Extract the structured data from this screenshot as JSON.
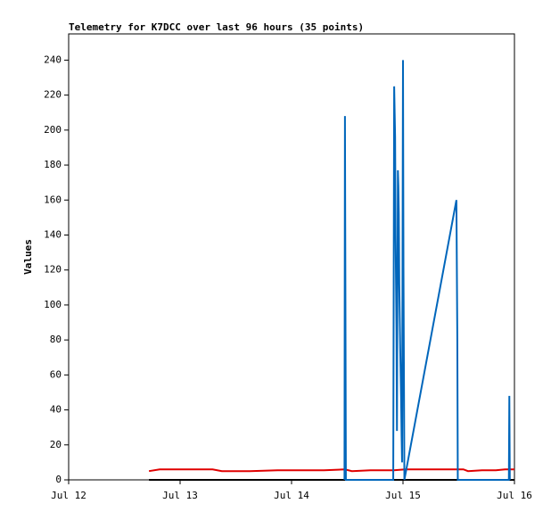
{
  "chart_data": {
    "type": "line",
    "title": "Telemetry for K7DCC over last 96 hours (35 points)",
    "y_label": "Values",
    "xlim": [
      0,
      96
    ],
    "xticks": [
      {
        "value": 0,
        "label": "Jul 12"
      },
      {
        "value": 24,
        "label": "Jul 13"
      },
      {
        "value": 48,
        "label": "Jul 14"
      },
      {
        "value": 72,
        "label": "Jul 15"
      },
      {
        "value": 96,
        "label": "Jul 16"
      }
    ],
    "ylim": [
      0,
      255
    ],
    "yticks": [
      0,
      20,
      40,
      60,
      80,
      100,
      120,
      140,
      160,
      180,
      200,
      220,
      240
    ],
    "grid": false,
    "series": [
      {
        "color": "#000000",
        "x": [
          17.3,
          96
        ],
        "values": [
          0,
          0
        ]
      },
      {
        "color": "#e00000",
        "x": [
          17.3,
          19.6,
          31.0,
          33.0,
          39.0,
          45.0,
          55.0,
          59.5,
          61.0,
          65.0,
          70.0,
          72.5,
          85.0,
          86.0,
          89.0,
          92.0,
          94.0,
          96.0
        ],
        "values": [
          5,
          6,
          6,
          5,
          5,
          5.5,
          5.5,
          6,
          5,
          5.5,
          5.5,
          6,
          6,
          5,
          5.5,
          5.5,
          6,
          6
        ]
      },
      {
        "color": "#0066bb",
        "x": [
          59.4,
          59.5,
          59.6,
          59.7,
          69.9,
          70.0,
          70.1,
          70.3,
          70.4,
          70.6,
          70.7,
          70.9,
          71.0,
          71.1,
          71.2,
          71.4,
          71.6,
          71.7,
          71.8,
          72.0,
          72.1,
          72.3,
          83.5,
          83.7,
          83.8,
          94.8,
          94.9,
          95.0
        ],
        "values": [
          0,
          208,
          104,
          0,
          0,
          112,
          225,
          196,
          140,
          85,
          28,
          177,
          168,
          152,
          112,
          75,
          45,
          25,
          10,
          240,
          122,
          0,
          160,
          80,
          0,
          0,
          48,
          0
        ]
      }
    ]
  }
}
